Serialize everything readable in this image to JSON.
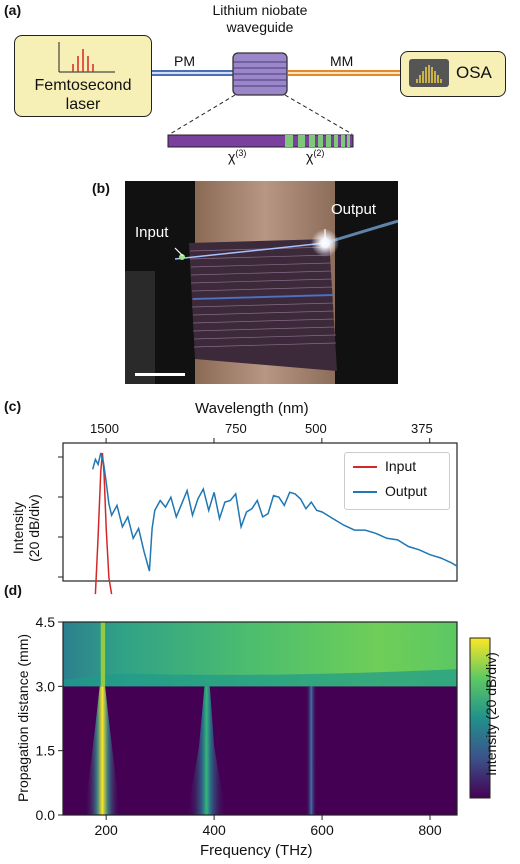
{
  "panel_a": {
    "letter": "(a)",
    "laser": [
      "Femtosecond",
      "laser"
    ],
    "pm": "PM",
    "mm": "MM",
    "osa": "OSA",
    "waveguide": [
      "Lithium niobate",
      "waveguide"
    ],
    "chi3": "χ",
    "chi3_sup": "(3)",
    "chi2": "χ",
    "chi2_sup": "(2)"
  },
  "panel_b": {
    "letter": "(b)",
    "input": "Input",
    "output": "Output"
  },
  "panel_c": {
    "letter": "(c)",
    "top_axis_label": "Wavelength (nm)",
    "top_ticks": [
      "1500",
      "750",
      "500",
      "375"
    ],
    "ylabel": [
      "Intensity",
      "(20 dB/div)"
    ],
    "legend": [
      "Input",
      "Output"
    ]
  },
  "panel_d": {
    "letter": "(d)",
    "ylabel": "Propagation distance (mm)",
    "xlabel": "Frequency (THz)",
    "colorbar_label": "Intensity (20 dB/div)"
  },
  "colors": {
    "input": "#d62728",
    "output": "#1f77b4",
    "viridis_low": "#440154",
    "viridis_high": "#fde725"
  },
  "chart_data": [
    {
      "type": "line",
      "title": "",
      "xlabel": "Frequency (THz)",
      "ylabel": "Intensity (20 dB/div)",
      "secondary_xlabel": "Wavelength (nm)",
      "secondary_ticks": [
        "1500",
        "750",
        "500",
        "375"
      ],
      "xlim": [
        120,
        850
      ],
      "legend_position": "top-right",
      "series": [
        {
          "name": "Input",
          "x": [
            180,
            185,
            190,
            193,
            196,
            200,
            205,
            210
          ],
          "y": [
            -6.0,
            -2.5,
            1.5,
            2.6,
            1.4,
            -2.0,
            -5.0,
            -6.0
          ]
        },
        {
          "name": "Output",
          "x": [
            175,
            180,
            185,
            190,
            195,
            200,
            205,
            210,
            220,
            230,
            240,
            250,
            260,
            270,
            280,
            285,
            290,
            300,
            310,
            320,
            330,
            340,
            350,
            360,
            370,
            380,
            390,
            400,
            410,
            420,
            430,
            440,
            450,
            460,
            470,
            480,
            490,
            500,
            510,
            520,
            530,
            540,
            550,
            560,
            570,
            580,
            590,
            600,
            620,
            640,
            660,
            680,
            700,
            720,
            740,
            760,
            780,
            800,
            820,
            840,
            850
          ],
          "y": [
            1.6,
            2.2,
            1.9,
            2.6,
            2.0,
            0.8,
            -0.5,
            -1.2,
            -0.6,
            -1.9,
            -1.3,
            -2.6,
            -2.0,
            -3.4,
            -4.6,
            -2.0,
            -0.9,
            -0.3,
            -0.7,
            -0.1,
            -1.3,
            -0.5,
            0.3,
            -1.2,
            -0.2,
            0.4,
            -0.9,
            0.2,
            -1.4,
            -0.4,
            -0.3,
            0.1,
            -1.9,
            -1.0,
            -0.8,
            -0.3,
            -1.3,
            -1.1,
            0.0,
            -0.1,
            -0.6,
            0.2,
            0.1,
            -0.2,
            -0.8,
            -0.4,
            -0.9,
            -1.0,
            -1.4,
            -1.8,
            -2.1,
            -2.1,
            -2.3,
            -2.6,
            -2.7,
            -3.1,
            -3.3,
            -3.6,
            -3.8,
            -4.1,
            -4.3
          ]
        }
      ]
    },
    {
      "type": "heatmap",
      "title": "",
      "xlabel": "Frequency (THz)",
      "ylabel": "Propagation distance (mm)",
      "colorbar_label": "Intensity (20 dB/div)",
      "xlim": [
        120,
        850
      ],
      "ylim": [
        0,
        4.5
      ],
      "xticks": [
        200,
        400,
        600,
        800
      ],
      "yticks": [
        0.0,
        1.5,
        3.0,
        4.5
      ],
      "colormap": "viridis",
      "features": [
        {
          "name": "pump",
          "center_thz": 193,
          "z_range": [
            0,
            4.5
          ]
        },
        {
          "name": "second harmonic",
          "center_thz": 386,
          "z_range": [
            0,
            3.0
          ]
        },
        {
          "name": "third harmonic",
          "center_thz": 579,
          "z_range": [
            0,
            3.0
          ]
        },
        {
          "name": "supercontinuum",
          "x_range": [
            140,
            850
          ],
          "z_range": [
            3.0,
            4.5
          ]
        }
      ]
    }
  ]
}
